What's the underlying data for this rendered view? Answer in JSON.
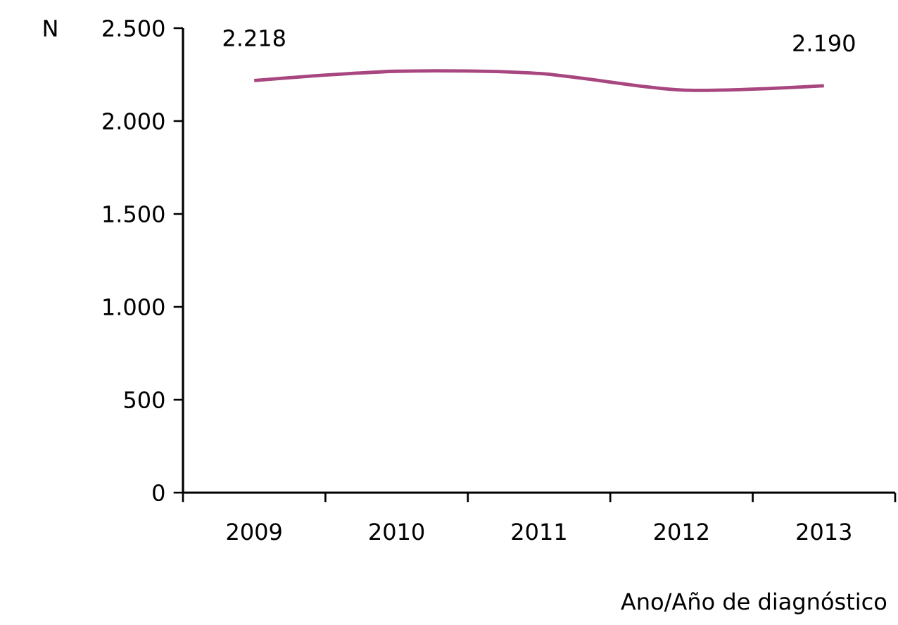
{
  "chart_data": {
    "type": "line",
    "ylabel": "N",
    "xlabel": "Ano/Año de diagnóstico",
    "categories": [
      "2009",
      "2010",
      "2011",
      "2012",
      "2013"
    ],
    "series": [
      {
        "color": "#a8467f",
        "values": [
          2218,
          2268,
          2256,
          2167,
          2190
        ],
        "value_labels": [
          "2.218",
          null,
          null,
          null,
          "2.190"
        ]
      }
    ],
    "ylim": [
      0,
      2500
    ],
    "yticks": [
      {
        "value": 0,
        "label": "0"
      },
      {
        "value": 500,
        "label": "500"
      },
      {
        "value": 1000,
        "label": "1.000"
      },
      {
        "value": 1500,
        "label": "1.500"
      },
      {
        "value": 2000,
        "label": "2.000"
      },
      {
        "value": 2500,
        "label": "2.500"
      }
    ],
    "grid": false,
    "marker": "none",
    "line_style": "solid"
  }
}
